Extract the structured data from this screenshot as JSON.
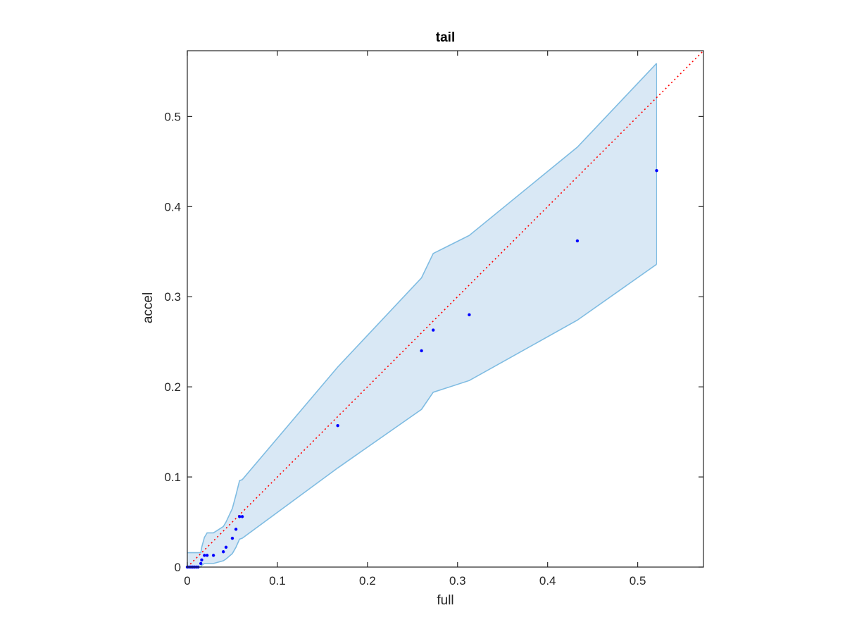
{
  "chart_data": {
    "type": "scatter",
    "title": "tail",
    "xlabel": "full",
    "ylabel": "accel",
    "xlim": [
      0,
      0.573
    ],
    "ylim": [
      0,
      0.573
    ],
    "xticks": [
      0,
      0.1,
      0.2,
      0.3,
      0.4,
      0.5
    ],
    "yticks": [
      0,
      0.1,
      0.2,
      0.3,
      0.4,
      0.5
    ],
    "xtick_labels": [
      "0",
      "0.1",
      "0.2",
      "0.3",
      "0.4",
      "0.5"
    ],
    "ytick_labels": [
      "0",
      "0.1",
      "0.2",
      "0.3",
      "0.4",
      "0.5"
    ],
    "grid": false,
    "points": {
      "x": [
        0.0,
        0.002,
        0.004,
        0.006,
        0.008,
        0.01,
        0.012,
        0.015,
        0.016,
        0.019,
        0.022,
        0.029,
        0.04,
        0.043,
        0.05,
        0.054,
        0.058,
        0.061,
        0.167,
        0.26,
        0.273,
        0.313,
        0.433,
        0.521
      ],
      "y": [
        0.0,
        0.0,
        0.0,
        0.0,
        0.0,
        0.0,
        0.0,
        0.004,
        0.008,
        0.013,
        0.013,
        0.013,
        0.017,
        0.022,
        0.032,
        0.042,
        0.056,
        0.056,
        0.157,
        0.24,
        0.263,
        0.28,
        0.362,
        0.44
      ],
      "color": "#0000ff"
    },
    "band": {
      "x": [
        0.0,
        0.015,
        0.016,
        0.019,
        0.022,
        0.029,
        0.04,
        0.043,
        0.05,
        0.054,
        0.058,
        0.061,
        0.167,
        0.26,
        0.273,
        0.313,
        0.433,
        0.521
      ],
      "upper": [
        0.016,
        0.016,
        0.022,
        0.033,
        0.038,
        0.038,
        0.045,
        0.05,
        0.065,
        0.08,
        0.096,
        0.097,
        0.222,
        0.321,
        0.348,
        0.368,
        0.466,
        0.559
      ],
      "lower": [
        0.0,
        0.0,
        0.002,
        0.004,
        0.004,
        0.004,
        0.007,
        0.009,
        0.015,
        0.022,
        0.031,
        0.032,
        0.11,
        0.175,
        0.194,
        0.207,
        0.274,
        0.336
      ],
      "fill_color": "#d9e8f5",
      "edge_color": "#7fbce2"
    },
    "reference_line": {
      "style": "dotted",
      "color": "#ff0000",
      "x": [
        0,
        0.573
      ],
      "y": [
        0,
        0.573
      ]
    }
  }
}
